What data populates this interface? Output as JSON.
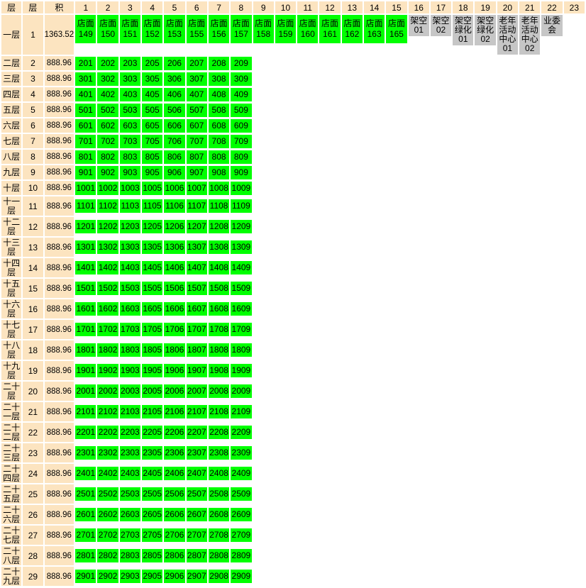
{
  "colors": {
    "header_bg": "#FCE4C0",
    "unit_available_green": "#00FF00",
    "unit_common_gray": "#C6C6C6",
    "grid_white": "#FFFFFF",
    "text": "#000000"
  },
  "header": {
    "left_labels": [
      "层",
      "层",
      "积"
    ],
    "columns": [
      "1",
      "2",
      "3",
      "4",
      "5",
      "6",
      "7",
      "8",
      "9",
      "10",
      "11",
      "12",
      "13",
      "14",
      "15",
      "16",
      "17",
      "18",
      "19",
      "20",
      "21",
      "22",
      "23"
    ]
  },
  "floors": [
    {
      "name": "一层",
      "number": "1",
      "area": "1363.52",
      "units": [
        "店面149",
        "店面150",
        "店面151",
        "店面152",
        "店面153",
        "店面155",
        "店面156",
        "店面157",
        "店面158",
        "店面159",
        "店面160",
        "店面161",
        "店面162",
        "店面163",
        "店面165",
        {
          "label": "架空01",
          "type": "gray"
        },
        {
          "label": "架空02",
          "type": "gray"
        },
        {
          "label": "架空绿化01",
          "type": "gray"
        },
        {
          "label": "架空绿化02",
          "type": "gray"
        },
        {
          "label": "老年活动中心01",
          "type": "gray"
        },
        {
          "label": "老年活动中心02",
          "type": "gray"
        },
        {
          "label": "业委会",
          "type": "gray"
        }
      ]
    },
    {
      "name": "二层",
      "number": "2",
      "area": "888.96",
      "units": [
        "201",
        "202",
        "203",
        "205",
        "206",
        "207",
        "208",
        "209"
      ]
    },
    {
      "name": "三层",
      "number": "3",
      "area": "888.96",
      "units": [
        "301",
        "302",
        "303",
        "305",
        "306",
        "307",
        "308",
        "309"
      ]
    },
    {
      "name": "四层",
      "number": "4",
      "area": "888.96",
      "units": [
        "401",
        "402",
        "403",
        "405",
        "406",
        "407",
        "408",
        "409"
      ]
    },
    {
      "name": "五层",
      "number": "5",
      "area": "888.96",
      "units": [
        "501",
        "502",
        "503",
        "505",
        "506",
        "507",
        "508",
        "509"
      ]
    },
    {
      "name": "六层",
      "number": "6",
      "area": "888.96",
      "units": [
        "601",
        "602",
        "603",
        "605",
        "606",
        "607",
        "608",
        "609"
      ]
    },
    {
      "name": "七层",
      "number": "7",
      "area": "888.96",
      "units": [
        "701",
        "702",
        "703",
        "705",
        "706",
        "707",
        "708",
        "709"
      ]
    },
    {
      "name": "八层",
      "number": "8",
      "area": "888.96",
      "units": [
        "801",
        "802",
        "803",
        "805",
        "806",
        "807",
        "808",
        "809"
      ]
    },
    {
      "name": "九层",
      "number": "9",
      "area": "888.96",
      "units": [
        "901",
        "902",
        "903",
        "905",
        "906",
        "907",
        "908",
        "909"
      ]
    },
    {
      "name": "十层",
      "number": "10",
      "area": "888.96",
      "units": [
        "1001",
        "1002",
        "1003",
        "1005",
        "1006",
        "1007",
        "1008",
        "1009"
      ]
    },
    {
      "name": "十一层",
      "number": "11",
      "area": "888.96",
      "units": [
        "1101",
        "1102",
        "1103",
        "1105",
        "1106",
        "1107",
        "1108",
        "1109"
      ]
    },
    {
      "name": "十二层",
      "number": "12",
      "area": "888.96",
      "units": [
        "1201",
        "1202",
        "1203",
        "1205",
        "1206",
        "1207",
        "1208",
        "1209"
      ]
    },
    {
      "name": "十三层",
      "number": "13",
      "area": "888.96",
      "units": [
        "1301",
        "1302",
        "1303",
        "1305",
        "1306",
        "1307",
        "1308",
        "1309"
      ]
    },
    {
      "name": "十四层",
      "number": "14",
      "area": "888.96",
      "units": [
        "1401",
        "1402",
        "1403",
        "1405",
        "1406",
        "1407",
        "1408",
        "1409"
      ]
    },
    {
      "name": "十五层",
      "number": "15",
      "area": "888.96",
      "units": [
        "1501",
        "1502",
        "1503",
        "1505",
        "1506",
        "1507",
        "1508",
        "1509"
      ]
    },
    {
      "name": "十六层",
      "number": "16",
      "area": "888.96",
      "units": [
        "1601",
        "1602",
        "1603",
        "1605",
        "1606",
        "1607",
        "1608",
        "1609"
      ]
    },
    {
      "name": "十七层",
      "number": "17",
      "area": "888.96",
      "units": [
        "1701",
        "1702",
        "1703",
        "1705",
        "1706",
        "1707",
        "1708",
        "1709"
      ]
    },
    {
      "name": "十八层",
      "number": "18",
      "area": "888.96",
      "units": [
        "1801",
        "1802",
        "1803",
        "1805",
        "1806",
        "1807",
        "1808",
        "1809"
      ]
    },
    {
      "name": "十九层",
      "number": "19",
      "area": "888.96",
      "units": [
        "1901",
        "1902",
        "1903",
        "1905",
        "1906",
        "1907",
        "1908",
        "1909"
      ]
    },
    {
      "name": "二十层",
      "number": "20",
      "area": "888.96",
      "units": [
        "2001",
        "2002",
        "2003",
        "2005",
        "2006",
        "2007",
        "2008",
        "2009"
      ]
    },
    {
      "name": "二十一层",
      "number": "21",
      "area": "888.96",
      "units": [
        "2101",
        "2102",
        "2103",
        "2105",
        "2106",
        "2107",
        "2108",
        "2109"
      ]
    },
    {
      "name": "二十二层",
      "number": "22",
      "area": "888.96",
      "units": [
        "2201",
        "2202",
        "2203",
        "2205",
        "2206",
        "2207",
        "2208",
        "2209"
      ]
    },
    {
      "name": "二十三层",
      "number": "23",
      "area": "888.96",
      "units": [
        "2301",
        "2302",
        "2303",
        "2305",
        "2306",
        "2307",
        "2308",
        "2309"
      ]
    },
    {
      "name": "二十四层",
      "number": "24",
      "area": "888.96",
      "units": [
        "2401",
        "2402",
        "2403",
        "2405",
        "2406",
        "2407",
        "2408",
        "2409"
      ]
    },
    {
      "name": "二十五层",
      "number": "25",
      "area": "888.96",
      "units": [
        "2501",
        "2502",
        "2503",
        "2505",
        "2506",
        "2507",
        "2508",
        "2509"
      ]
    },
    {
      "name": "二十六层",
      "number": "26",
      "area": "888.96",
      "units": [
        "2601",
        "2602",
        "2603",
        "2605",
        "2606",
        "2607",
        "2608",
        "2609"
      ]
    },
    {
      "name": "二十七层",
      "number": "27",
      "area": "888.96",
      "units": [
        "2701",
        "2702",
        "2703",
        "2705",
        "2706",
        "2707",
        "2708",
        "2709"
      ]
    },
    {
      "name": "二十八层",
      "number": "28",
      "area": "888.96",
      "units": [
        "2801",
        "2802",
        "2803",
        "2805",
        "2806",
        "2807",
        "2808",
        "2809"
      ]
    },
    {
      "name": "二十九层",
      "number": "29",
      "area": "888.96",
      "units": [
        "2901",
        "2902",
        "2903",
        "2905",
        "2906",
        "2907",
        "2908",
        "2909"
      ]
    }
  ]
}
